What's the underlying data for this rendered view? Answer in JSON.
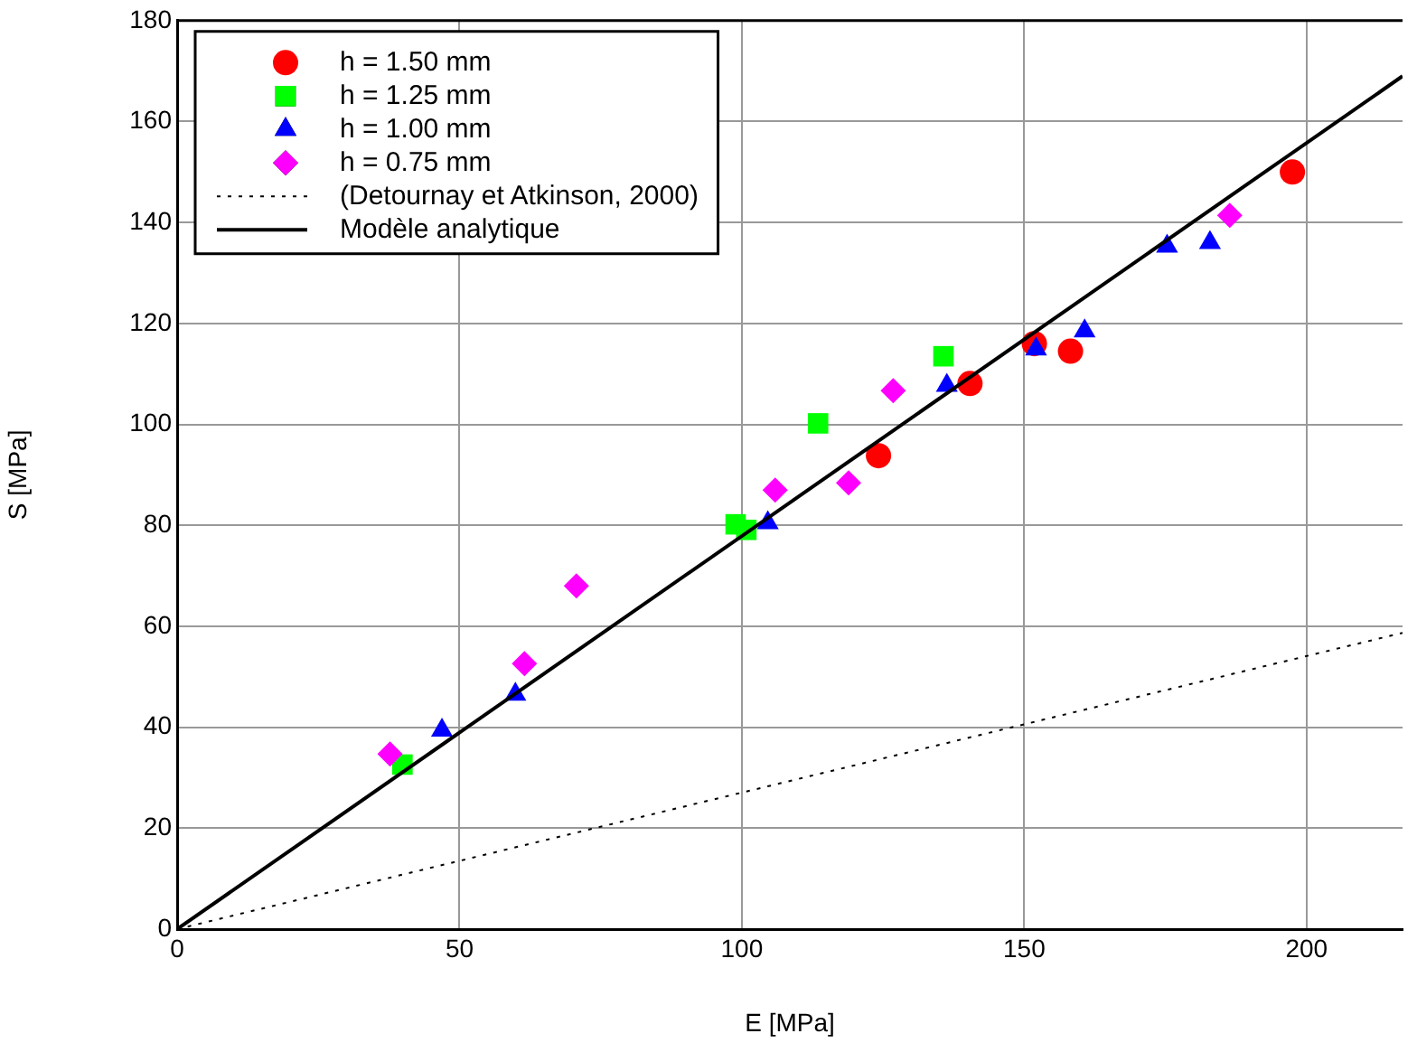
{
  "chart_data": {
    "type": "scatter",
    "xlabel": "E [MPa]",
    "ylabel": "S [MPa]",
    "xlim": [
      0,
      217
    ],
    "ylim": [
      0,
      180
    ],
    "xticks": [
      0,
      50,
      100,
      150,
      200
    ],
    "yticks": [
      0,
      20,
      40,
      60,
      80,
      100,
      120,
      140,
      160,
      180
    ],
    "grid": true,
    "legend": "top left",
    "series": [
      {
        "name": "h = 1.50 mm",
        "color": "#ff0000",
        "marker": "circle",
        "x": [
          124.2,
          140.4,
          151.8,
          158.2,
          197.5
        ],
        "values": [
          93.8,
          108.1,
          116.0,
          114.5,
          150.0
        ]
      },
      {
        "name": "h = 1.25 mm",
        "color": "#00ff00",
        "marker": "square",
        "x": [
          39.9,
          98.9,
          100.8,
          113.5,
          135.7
        ],
        "values": [
          32.6,
          80.2,
          79.1,
          100.2,
          113.5
        ]
      },
      {
        "name": "h = 1.00 mm",
        "color": "#0000ff",
        "marker": "triangle",
        "x": [
          46.9,
          59.9,
          104.6,
          136.3,
          152.1,
          160.7,
          175.3,
          182.9
        ],
        "values": [
          39.4,
          46.5,
          80.5,
          107.7,
          114.9,
          118.5,
          135.3,
          136.0
        ]
      },
      {
        "name": "h = 0.75 mm",
        "color": "#ff00ff",
        "marker": "diamond",
        "x": [
          37.7,
          61.5,
          70.7,
          105.9,
          118.9,
          126.8,
          186.4
        ],
        "values": [
          34.7,
          52.6,
          68.0,
          87.0,
          88.4,
          106.7,
          141.4
        ]
      },
      {
        "name": "(Detournay et Atkinson, 2000)",
        "color": "#000000",
        "type": "line",
        "line_style": "dotted",
        "marker": "none",
        "x": [
          0,
          217
        ],
        "values": [
          0,
          58.7
        ]
      },
      {
        "name": "Modèle analytique",
        "color": "#000000",
        "type": "line",
        "line_style": "solid",
        "marker": "none",
        "x": [
          0,
          217
        ],
        "values": [
          0,
          169
        ]
      }
    ]
  }
}
